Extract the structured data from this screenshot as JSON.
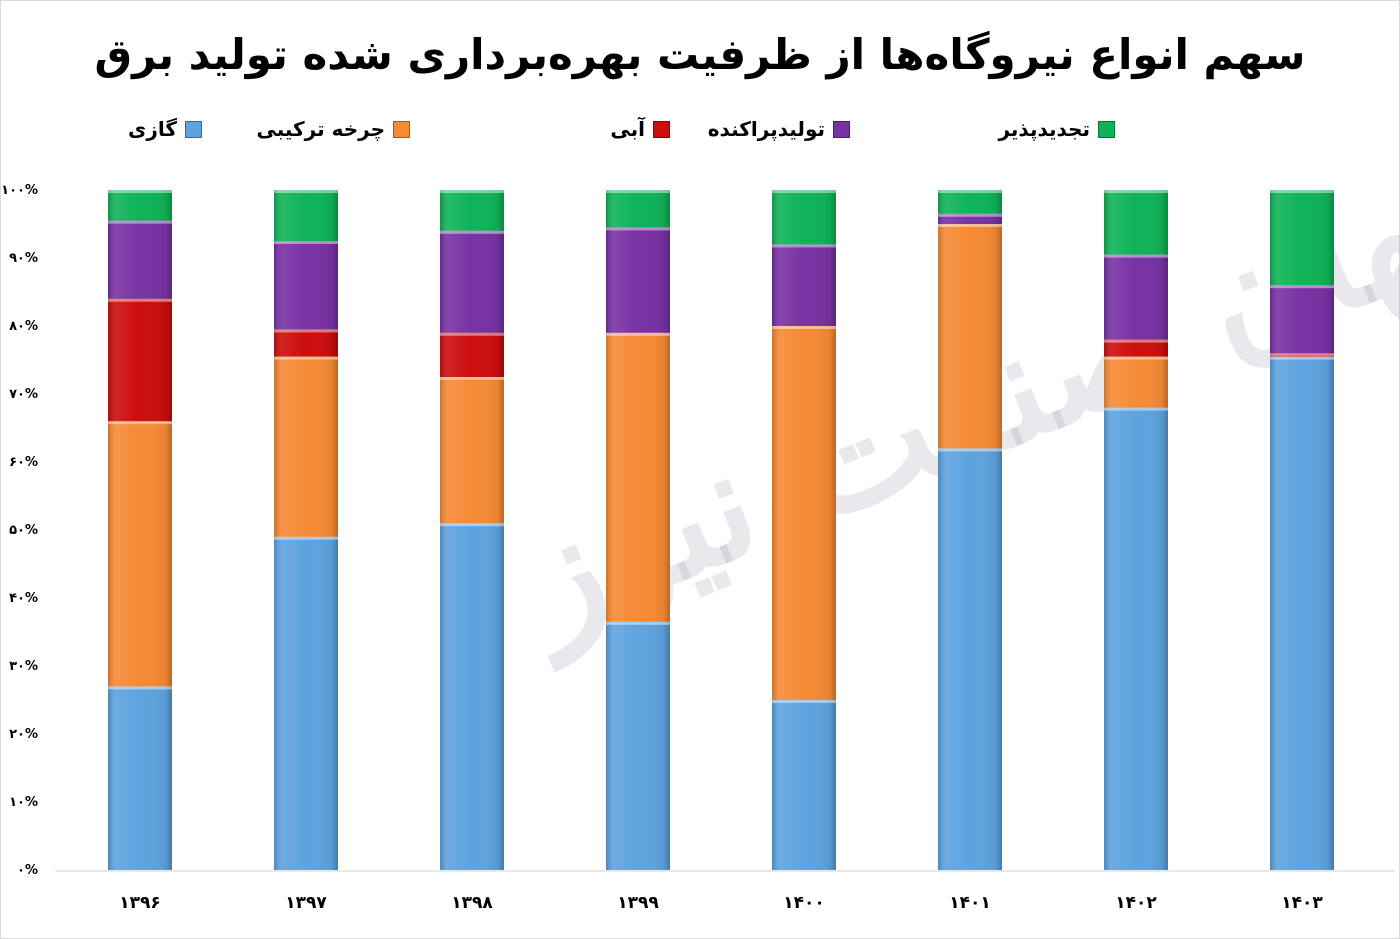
{
  "chart_data": {
    "type": "bar",
    "stacked": true,
    "title": "سهم انواع نیروگاه‌ها از ظرفیت بهره‌برداری شده تولید برق",
    "categories": [
      "۱۳۹۶",
      "۱۳۹۷",
      "۱۳۹۸",
      "۱۳۹۹",
      "۱۴۰۰",
      "۱۴۰۱",
      "۱۴۰۲",
      "۱۴۰۳"
    ],
    "series": [
      {
        "name": "گازی",
        "color": "#5ea3df",
        "values": [
          27,
          49,
          51,
          36.5,
          25,
          62,
          68,
          75.5
        ]
      },
      {
        "name": "چرخه ترکیبی",
        "color": "#f68a35",
        "values": [
          39,
          26.5,
          21.5,
          42.5,
          55,
          33,
          7.5,
          0
        ]
      },
      {
        "name": "آبی",
        "color": "#cc0d0d",
        "values": [
          18,
          4,
          6.5,
          0,
          0,
          0,
          2.5,
          0.5
        ]
      },
      {
        "name": "تولیدپراکنده",
        "color": "#7832a4",
        "values": [
          11.5,
          13,
          15,
          15.5,
          12,
          1.5,
          12.5,
          10
        ]
      },
      {
        "name": "تجدیدپذیر",
        "color": "#0fb357",
        "values": [
          4.5,
          7.5,
          6,
          5.5,
          8,
          3.5,
          9.5,
          14
        ]
      }
    ],
    "y_ticks": [
      "۰%",
      "۱۰%",
      "۲۰%",
      "۳۰%",
      "۴۰%",
      "۵۰%",
      "۶۰%",
      "۷۰%",
      "۸۰%",
      "۹۰%",
      "۱۰۰%"
    ],
    "ylim": [
      0,
      100
    ],
    "grid": false,
    "legend_position": "top"
  },
  "watermark": "جهان صنعت نیوز"
}
